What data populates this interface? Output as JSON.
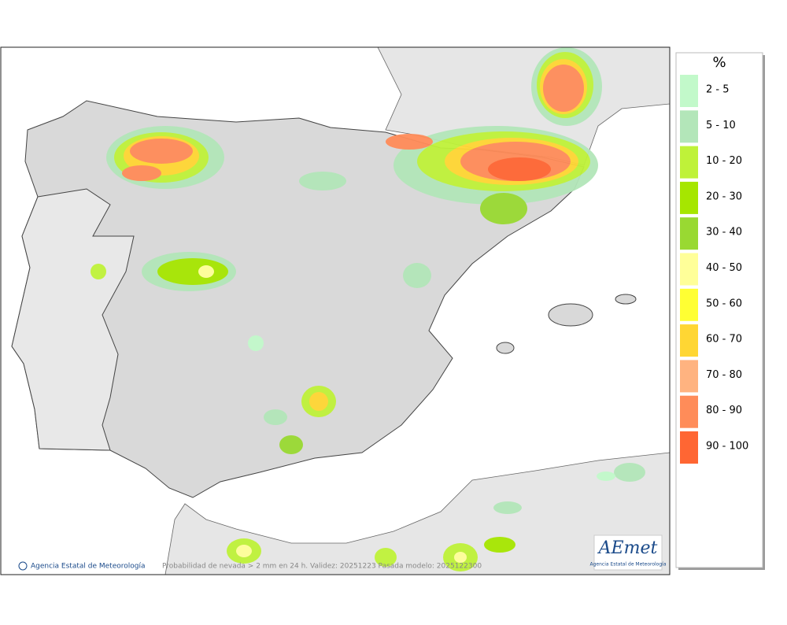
{
  "legend": {
    "title": "%",
    "items": [
      {
        "label": "2 - 5",
        "color": "#c2f9ca"
      },
      {
        "label": "5 - 10",
        "color": "#b3e6b9"
      },
      {
        "label": "10 - 20",
        "color": "#bff239"
      },
      {
        "label": "20 - 30",
        "color": "#a6e600"
      },
      {
        "label": "30 - 40",
        "color": "#99d932"
      },
      {
        "label": "40 - 50",
        "color": "#ffff99"
      },
      {
        "label": "50 - 60",
        "color": "#ffff33"
      },
      {
        "label": "60 - 70",
        "color": "#ffd633"
      },
      {
        "label": "70 - 80",
        "color": "#ffb380"
      },
      {
        "label": "80 - 90",
        "color": "#ff8c59"
      },
      {
        "label": "90 - 100",
        "color": "#ff6633"
      }
    ]
  },
  "footer": {
    "credit": "Agencia Estatal de Meteorología",
    "caption": "Probabilidad de nevada > 2 mm en 24 h. Validez: 20251223 Pasada modelo: 2025122300"
  },
  "logo": {
    "name": "AEmet",
    "subtitle": "Agencia Estatal de Meteorología"
  }
}
